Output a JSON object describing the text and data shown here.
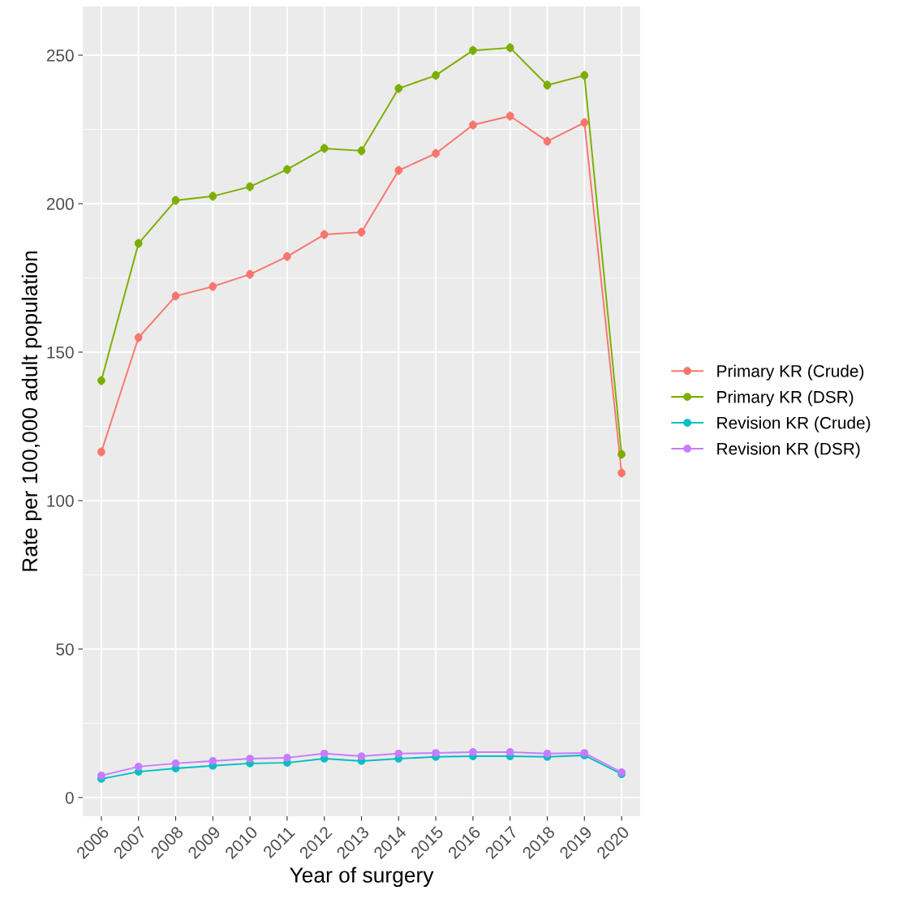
{
  "chart_data": {
    "type": "line",
    "xlabel": "Year of surgery",
    "ylabel": "Rate per 100,000 adult population",
    "categories": [
      "2006",
      "2007",
      "2008",
      "2009",
      "2010",
      "2011",
      "2012",
      "2013",
      "2014",
      "2015",
      "2016",
      "2017",
      "2018",
      "2019",
      "2020"
    ],
    "series": [
      {
        "name": "Primary KR (Crude)",
        "color": "#f8766d",
        "values": [
          116.4,
          154.9,
          168.9,
          172.1,
          176.2,
          182.2,
          189.6,
          190.4,
          211.2,
          216.9,
          226.5,
          229.5,
          221.0,
          227.3,
          109.3
        ],
        "errors": [
          1.5,
          1.5,
          1.5,
          1.5,
          1.5,
          1.5,
          1.5,
          1.5,
          1.5,
          1.5,
          1.5,
          1.5,
          1.5,
          1.5,
          1.5
        ]
      },
      {
        "name": "Primary KR (DSR)",
        "color": "#7cae00",
        "values": [
          140.4,
          186.6,
          201.1,
          202.5,
          205.7,
          211.5,
          218.6,
          217.8,
          238.8,
          243.2,
          251.6,
          252.5,
          239.9,
          243.2,
          115.6
        ],
        "errors": [
          1.5,
          1.5,
          1.5,
          1.5,
          1.5,
          1.5,
          1.5,
          1.5,
          1.5,
          1.5,
          1.5,
          1.5,
          1.5,
          1.5,
          1.5
        ]
      },
      {
        "name": "Revision KR (Crude)",
        "color": "#00bfc4",
        "values": [
          6.3,
          8.7,
          9.8,
          10.7,
          11.5,
          11.7,
          13.1,
          12.3,
          13.1,
          13.7,
          13.9,
          13.9,
          13.7,
          14.2,
          7.9
        ]
      },
      {
        "name": "Revision KR (DSR)",
        "color": "#c77cff",
        "values": [
          7.4,
          10.4,
          11.5,
          12.3,
          13.1,
          13.4,
          14.8,
          13.9,
          14.8,
          15.0,
          15.3,
          15.3,
          14.8,
          15.0,
          8.5
        ]
      }
    ],
    "ylim": [
      -6.3,
      266.4
    ],
    "yticks": [
      0,
      50,
      100,
      150,
      200,
      250
    ],
    "grid": true,
    "legend": "right",
    "marker": "circle",
    "line_style": "solid"
  }
}
